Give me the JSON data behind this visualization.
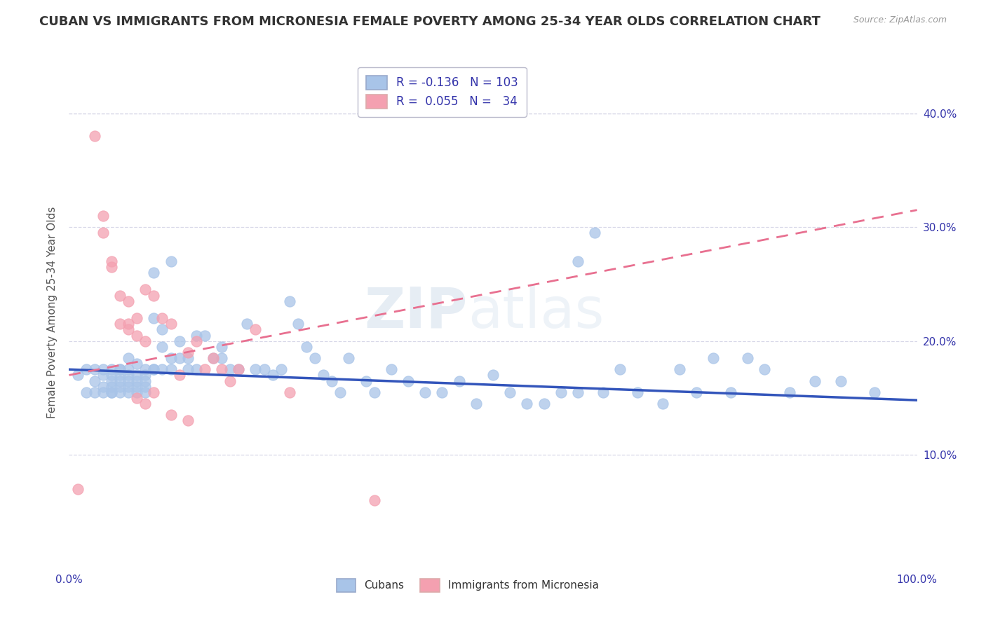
{
  "title": "CUBAN VS IMMIGRANTS FROM MICRONESIA FEMALE POVERTY AMONG 25-34 YEAR OLDS CORRELATION CHART",
  "source_text": "Source: ZipAtlas.com",
  "ylabel": "Female Poverty Among 25-34 Year Olds",
  "xlim": [
    0,
    1.0
  ],
  "ylim": [
    0,
    0.45
  ],
  "watermark": "ZIPatlas",
  "blue_scatter_color": "#a8c4e8",
  "pink_scatter_color": "#f4a0b0",
  "blue_line_color": "#3355bb",
  "pink_line_color": "#e87090",
  "grid_color": "#d8d8e8",
  "title_color": "#333333",
  "axis_color": "#3333aa",
  "ylabel_color": "#555555",
  "cubans_x": [
    0.01,
    0.02,
    0.02,
    0.03,
    0.03,
    0.03,
    0.04,
    0.04,
    0.04,
    0.04,
    0.05,
    0.05,
    0.05,
    0.05,
    0.05,
    0.05,
    0.06,
    0.06,
    0.06,
    0.06,
    0.06,
    0.06,
    0.07,
    0.07,
    0.07,
    0.07,
    0.07,
    0.07,
    0.08,
    0.08,
    0.08,
    0.08,
    0.08,
    0.09,
    0.09,
    0.09,
    0.09,
    0.09,
    0.1,
    0.1,
    0.1,
    0.1,
    0.11,
    0.11,
    0.11,
    0.12,
    0.12,
    0.12,
    0.13,
    0.13,
    0.14,
    0.14,
    0.15,
    0.15,
    0.16,
    0.17,
    0.18,
    0.18,
    0.19,
    0.2,
    0.21,
    0.22,
    0.23,
    0.24,
    0.25,
    0.26,
    0.27,
    0.28,
    0.29,
    0.3,
    0.31,
    0.32,
    0.33,
    0.35,
    0.36,
    0.38,
    0.4,
    0.42,
    0.44,
    0.46,
    0.48,
    0.5,
    0.52,
    0.54,
    0.56,
    0.58,
    0.6,
    0.6,
    0.62,
    0.63,
    0.65,
    0.67,
    0.7,
    0.72,
    0.74,
    0.76,
    0.78,
    0.8,
    0.82,
    0.85,
    0.88,
    0.91,
    0.95
  ],
  "cubans_y": [
    0.17,
    0.155,
    0.175,
    0.165,
    0.155,
    0.175,
    0.16,
    0.17,
    0.155,
    0.175,
    0.165,
    0.155,
    0.17,
    0.16,
    0.175,
    0.155,
    0.175,
    0.17,
    0.16,
    0.155,
    0.165,
    0.175,
    0.17,
    0.165,
    0.16,
    0.155,
    0.175,
    0.185,
    0.18,
    0.17,
    0.165,
    0.155,
    0.16,
    0.175,
    0.17,
    0.165,
    0.16,
    0.155,
    0.26,
    0.22,
    0.175,
    0.175,
    0.21,
    0.195,
    0.175,
    0.27,
    0.175,
    0.185,
    0.2,
    0.185,
    0.185,
    0.175,
    0.205,
    0.175,
    0.205,
    0.185,
    0.195,
    0.185,
    0.175,
    0.175,
    0.215,
    0.175,
    0.175,
    0.17,
    0.175,
    0.235,
    0.215,
    0.195,
    0.185,
    0.17,
    0.165,
    0.155,
    0.185,
    0.165,
    0.155,
    0.175,
    0.165,
    0.155,
    0.155,
    0.165,
    0.145,
    0.17,
    0.155,
    0.145,
    0.145,
    0.155,
    0.27,
    0.155,
    0.295,
    0.155,
    0.175,
    0.155,
    0.145,
    0.175,
    0.155,
    0.185,
    0.155,
    0.185,
    0.175,
    0.155,
    0.165,
    0.165,
    0.155
  ],
  "micronesia_x": [
    0.01,
    0.03,
    0.04,
    0.04,
    0.05,
    0.05,
    0.06,
    0.06,
    0.07,
    0.07,
    0.07,
    0.08,
    0.08,
    0.09,
    0.09,
    0.1,
    0.11,
    0.12,
    0.13,
    0.14,
    0.15,
    0.16,
    0.17,
    0.18,
    0.19,
    0.2,
    0.22,
    0.08,
    0.09,
    0.1,
    0.12,
    0.14,
    0.26,
    0.36
  ],
  "micronesia_y": [
    0.07,
    0.38,
    0.31,
    0.295,
    0.27,
    0.265,
    0.24,
    0.215,
    0.235,
    0.215,
    0.21,
    0.22,
    0.205,
    0.245,
    0.2,
    0.24,
    0.22,
    0.215,
    0.17,
    0.19,
    0.2,
    0.175,
    0.185,
    0.175,
    0.165,
    0.175,
    0.21,
    0.15,
    0.145,
    0.155,
    0.135,
    0.13,
    0.155,
    0.06
  ],
  "blue_trendline_x0": 0.0,
  "blue_trendline_y0": 0.175,
  "blue_trendline_x1": 1.0,
  "blue_trendline_y1": 0.148,
  "pink_trendline_x0": 0.0,
  "pink_trendline_y0": 0.17,
  "pink_trendline_x1": 1.0,
  "pink_trendline_y1": 0.315
}
